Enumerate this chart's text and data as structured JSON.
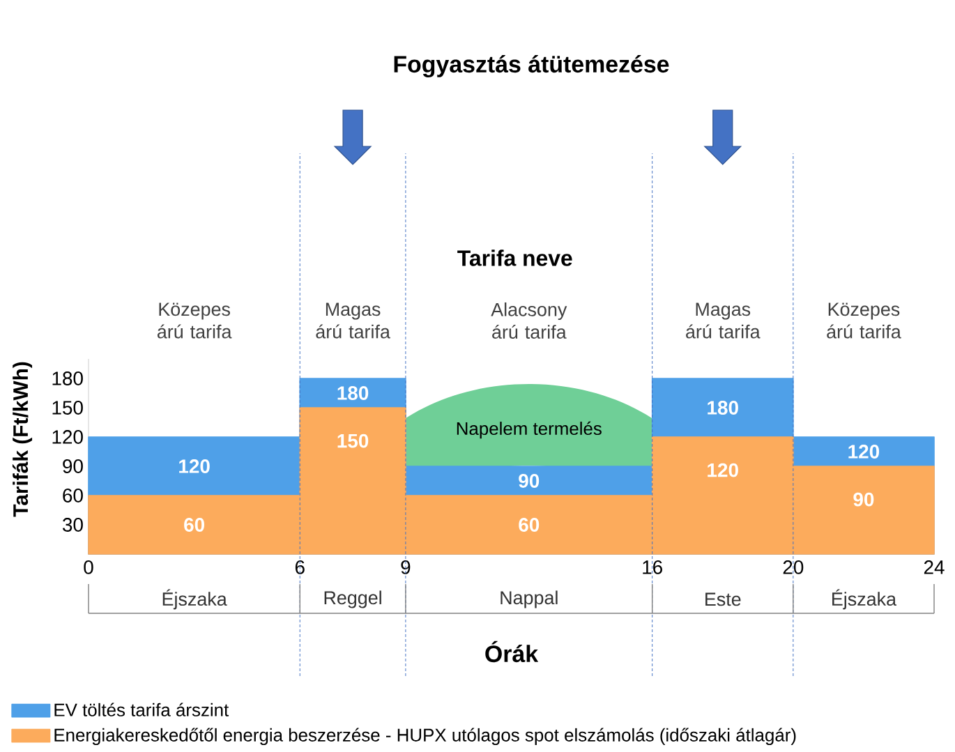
{
  "chart_data": {
    "type": "area",
    "title": "Fogyasztás átütemezése",
    "xlabel": "Órák",
    "ylabel": "Tarifák (Ft/kWh)",
    "x": [
      0,
      6,
      6,
      9,
      9,
      16,
      16,
      20,
      20,
      24
    ],
    "series": [
      {
        "name": "EV töltés tarifa árszint",
        "color": "#4fa0e8",
        "values": [
          120,
          120,
          180,
          180,
          90,
          90,
          180,
          180,
          120,
          120
        ]
      },
      {
        "name": "Energiakereskedőtől energia beszerzése - HUPX utólagos spot elszámolás (időszaki átlagár)",
        "color": "#fcab5c",
        "values": [
          60,
          60,
          150,
          150,
          60,
          60,
          120,
          120,
          90,
          90
        ]
      }
    ],
    "xlim": [
      0,
      24
    ],
    "xticks": [
      0,
      6,
      9,
      16,
      20,
      24
    ],
    "ylim": [
      0,
      200
    ],
    "yticks": [
      30,
      60,
      90,
      120,
      150,
      180
    ],
    "ref_lines": [
      {
        "axis": "x",
        "value": 6,
        "color": "#4472c4",
        "line_style": "dashed"
      },
      {
        "axis": "x",
        "value": 9,
        "color": "#4472c4",
        "line_style": "dashed"
      },
      {
        "axis": "x",
        "value": 16,
        "color": "#4472c4",
        "line_style": "dashed"
      },
      {
        "axis": "x",
        "value": 20,
        "color": "#4472c4",
        "line_style": "dashed"
      }
    ],
    "annotations": [
      "Tarifa neve",
      "Közepes árú tarifa",
      "Magas árú tarifa",
      "Alacsony árú tarifa",
      "Magas árú tarifa",
      "Közepes árú tarifa",
      "Napelem termelés",
      "Éjszaka",
      "Reggel",
      "Nappal",
      "Este",
      "Éjszaka",
      {
        "text": "120",
        "x": 3,
        "y": 120
      },
      {
        "text": "180",
        "x": 7.5,
        "y": 180
      },
      {
        "text": "90",
        "x": 12.5,
        "y": 90
      },
      {
        "text": "180",
        "x": 18,
        "y": 180
      },
      {
        "text": "120",
        "x": 22,
        "y": 120
      },
      {
        "text": "60",
        "x": 3,
        "y": 60
      },
      {
        "text": "150",
        "x": 7.5,
        "y": 150
      },
      {
        "text": "60",
        "x": 12.5,
        "y": 60
      },
      {
        "text": "120",
        "x": 18,
        "y": 120
      },
      {
        "text": "90",
        "x": 22,
        "y": 90
      }
    ],
    "legend": "bottom"
  }
}
